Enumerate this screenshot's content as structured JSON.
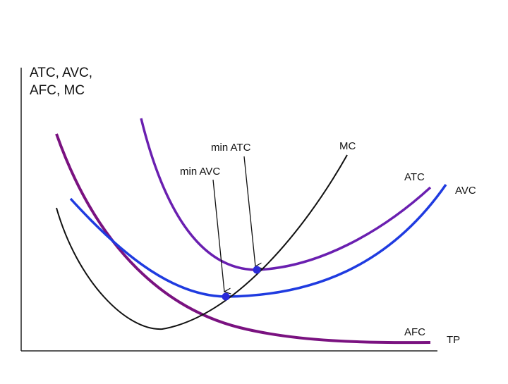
{
  "axes": {
    "y_label_line1": "ATC, AVC,",
    "y_label_line2": "AFC, MC",
    "x_label": "TP"
  },
  "curves": {
    "mc": {
      "label": "MC",
      "color": "#111111"
    },
    "atc": {
      "label": "ATC",
      "color": "#6a1fb0"
    },
    "avc": {
      "label": "AVC",
      "color": "#1f3be0"
    },
    "afc": {
      "label": "AFC",
      "color": "#7a1280"
    }
  },
  "annotations": {
    "min_atc": "min ATC",
    "min_avc": "min AVC"
  },
  "colors": {
    "axis": "#222222",
    "point": "#2a2ad8",
    "arrow": "#111111"
  }
}
